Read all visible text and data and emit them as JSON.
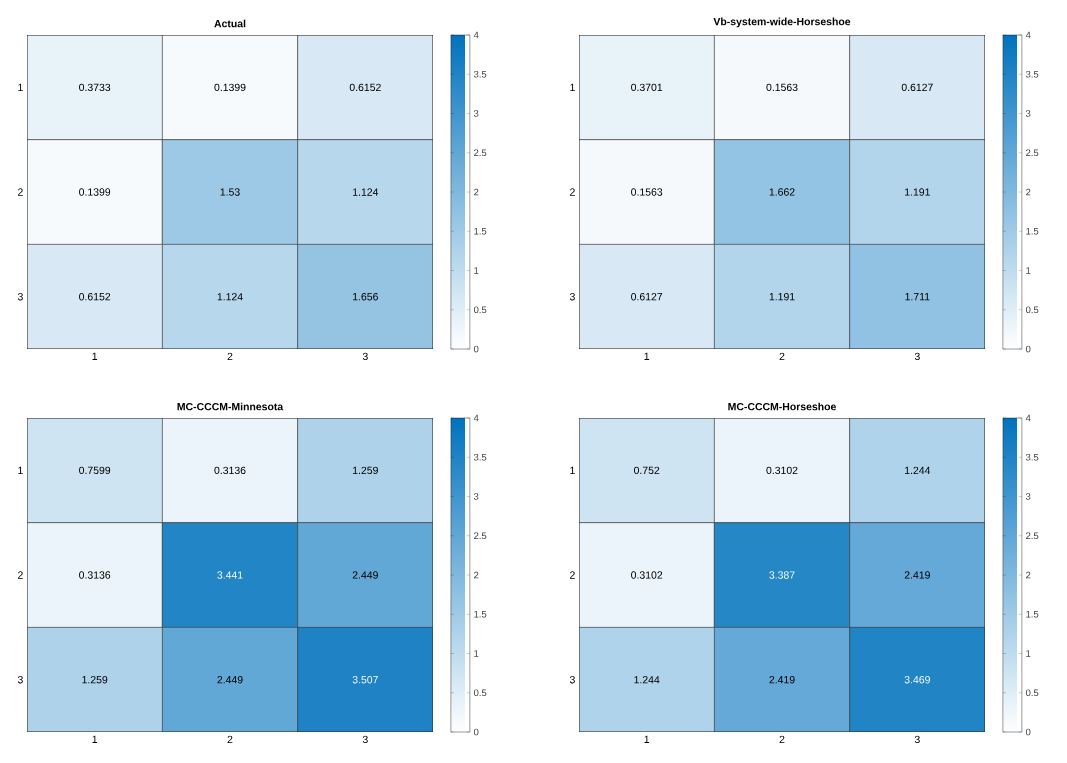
{
  "chart_data": [
    {
      "type": "heatmap",
      "title": "Actual",
      "categories": [
        "1",
        "2",
        "3"
      ],
      "y_categories": [
        "1",
        "2",
        "3"
      ],
      "cells": [
        [
          0.3733,
          0.1399,
          0.6152
        ],
        [
          0.1399,
          1.53,
          1.124
        ],
        [
          0.6152,
          1.124,
          1.656
        ]
      ],
      "data_labels": true,
      "clim": [
        0,
        4
      ],
      "cticks": [
        0,
        0.5,
        1,
        1.5,
        2,
        2.5,
        3,
        3.5,
        4
      ]
    },
    {
      "type": "heatmap",
      "title": "Vb-system-wide-Horseshoe",
      "categories": [
        "1",
        "2",
        "3"
      ],
      "y_categories": [
        "1",
        "2",
        "3"
      ],
      "cells": [
        [
          0.3701,
          0.1563,
          0.6127
        ],
        [
          0.1563,
          1.662,
          1.191
        ],
        [
          0.6127,
          1.191,
          1.711
        ]
      ],
      "data_labels": true,
      "clim": [
        0,
        4
      ],
      "cticks": [
        0,
        0.5,
        1,
        1.5,
        2,
        2.5,
        3,
        3.5,
        4
      ]
    },
    {
      "type": "heatmap",
      "title": "MC-CCCM-Minnesota",
      "categories": [
        "1",
        "2",
        "3"
      ],
      "y_categories": [
        "1",
        "2",
        "3"
      ],
      "cells": [
        [
          0.7599,
          0.3136,
          1.259
        ],
        [
          0.3136,
          3.441,
          2.449
        ],
        [
          1.259,
          2.449,
          3.507
        ]
      ],
      "data_labels": true,
      "clim": [
        0,
        4
      ],
      "cticks": [
        0,
        0.5,
        1,
        1.5,
        2,
        2.5,
        3,
        3.5,
        4
      ]
    },
    {
      "type": "heatmap",
      "title": "MC-CCCM-Horseshoe",
      "categories": [
        "1",
        "2",
        "3"
      ],
      "y_categories": [
        "1",
        "2",
        "3"
      ],
      "cells": [
        [
          0.752,
          0.3102,
          1.244
        ],
        [
          0.3102,
          3.387,
          2.419
        ],
        [
          1.244,
          2.419,
          3.469
        ]
      ],
      "data_labels": true,
      "clim": [
        0,
        4
      ],
      "cticks": [
        0,
        0.5,
        1,
        1.5,
        2,
        2.5,
        3,
        3.5,
        4
      ]
    }
  ]
}
